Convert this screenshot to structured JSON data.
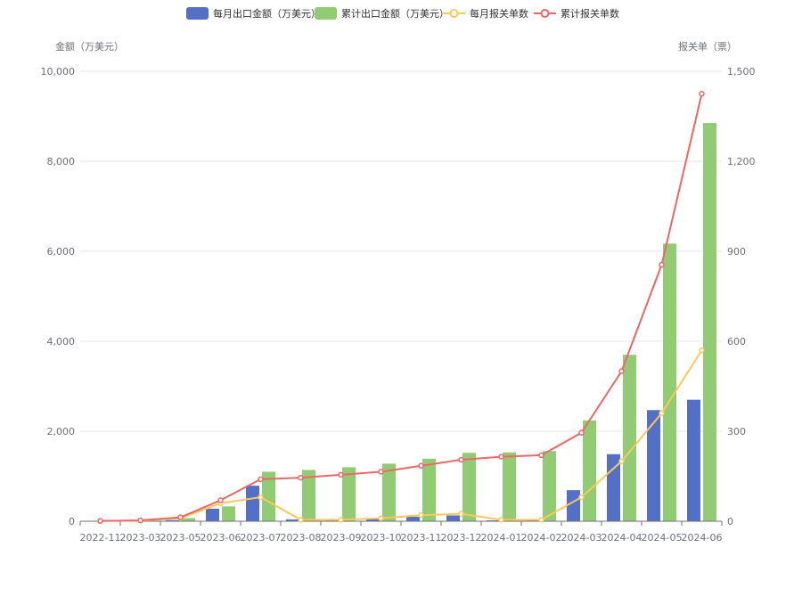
{
  "chart_data": {
    "type": "bar",
    "legend_position": "top-center",
    "grid": true,
    "categories": [
      "2022-11",
      "2023-03",
      "2023-05",
      "2023-06",
      "2023-07",
      "2023-08",
      "2023-09",
      "2023-10",
      "2023-11",
      "2023-12",
      "2024-01",
      "2024-02",
      "2024-03",
      "2024-04",
      "2024-05",
      "2024-06"
    ],
    "y_left": {
      "label": "金额（万美元）",
      "ylim": [
        0,
        10000
      ],
      "ticks": [
        0,
        2000,
        4000,
        6000,
        8000,
        10000
      ],
      "tick_labels": [
        "0",
        "2,000",
        "4,000",
        "6,000",
        "8,000",
        "10,000"
      ]
    },
    "y_right": {
      "label": "报关单（票）",
      "ylim": [
        0,
        1500
      ],
      "ticks": [
        0,
        300,
        600,
        900,
        1200,
        1500
      ],
      "tick_labels": [
        "0",
        "300",
        "600",
        "900",
        "1,200",
        "1,500"
      ]
    },
    "series": [
      {
        "name": "每月出口金额（万美元）",
        "kind": "bar",
        "axis": "left",
        "color": "#5470c6",
        "values": [
          2,
          10,
          25,
          280,
          790,
          40,
          50,
          60,
          100,
          130,
          20,
          20,
          690,
          1490,
          2470,
          2700
        ]
      },
      {
        "name": "累计出口金额（万美元）",
        "kind": "bar",
        "axis": "left",
        "color": "#91cc75",
        "values": [
          2,
          12,
          70,
          330,
          1100,
          1140,
          1200,
          1280,
          1390,
          1520,
          1530,
          1560,
          2240,
          3700,
          6170,
          8850
        ]
      },
      {
        "name": "每月报关单数",
        "kind": "line",
        "axis": "right",
        "color": "#fac858",
        "values": [
          1,
          2,
          10,
          60,
          80,
          5,
          5,
          10,
          20,
          25,
          5,
          5,
          80,
          200,
          360,
          570
        ]
      },
      {
        "name": "累计报关单数",
        "kind": "line",
        "axis": "right",
        "color": "#ee6666",
        "values": [
          1,
          3,
          13,
          70,
          140,
          145,
          155,
          165,
          185,
          205,
          215,
          220,
          295,
          500,
          855,
          1425
        ]
      }
    ]
  }
}
